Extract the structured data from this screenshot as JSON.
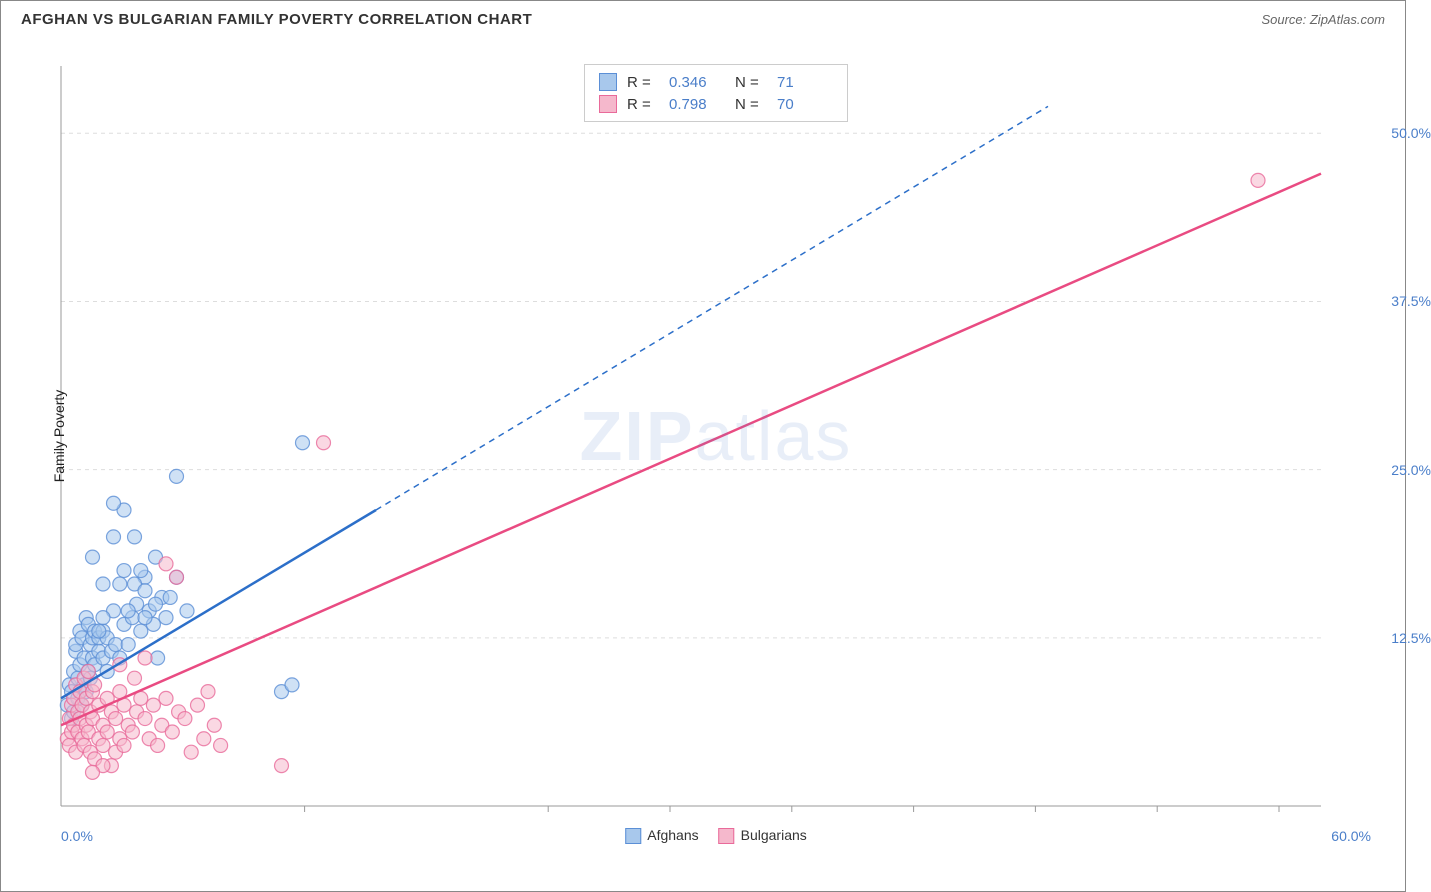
{
  "title": "AFGHAN VS BULGARIAN FAMILY POVERTY CORRELATION CHART",
  "source": "Source: ZipAtlas.com",
  "ylabel": "Family Poverty",
  "watermark_a": "ZIP",
  "watermark_b": "atlas",
  "chart": {
    "type": "scatter",
    "xlim": [
      0.0,
      60.0
    ],
    "ylim": [
      0.0,
      55.0
    ],
    "x_ticks": [
      0.0,
      60.0
    ],
    "x_tick_labels": [
      "0.0%",
      "60.0%"
    ],
    "x_minor_ticks": [
      11.6,
      23.2,
      29.0,
      34.8,
      40.6,
      46.4,
      52.2,
      58.0
    ],
    "y_ticks": [
      12.5,
      25.0,
      37.5,
      50.0
    ],
    "y_tick_labels": [
      "12.5%",
      "25.0%",
      "37.5%",
      "50.0%"
    ],
    "grid_color": "#dddddd",
    "grid_dash": "4,4",
    "axis_color": "#999999",
    "background_color": "#ffffff",
    "marker_radius": 7,
    "marker_opacity": 0.55,
    "series": [
      {
        "name": "Afghans",
        "color_fill": "#a8c8ec",
        "color_stroke": "#5b8fd6",
        "R": "0.346",
        "N": "71",
        "trend": {
          "x1": 0.0,
          "y1": 8.0,
          "x2": 15.0,
          "y2": 22.0,
          "x2_ext": 47.0,
          "y2_ext": 52.0,
          "color": "#2c6fc9",
          "width": 2.5
        },
        "points": [
          [
            0.3,
            7.5
          ],
          [
            0.4,
            9.0
          ],
          [
            0.5,
            6.5
          ],
          [
            0.5,
            8.5
          ],
          [
            0.6,
            10.0
          ],
          [
            0.6,
            7.0
          ],
          [
            0.7,
            11.5
          ],
          [
            0.7,
            12.0
          ],
          [
            0.8,
            9.5
          ],
          [
            0.8,
            8.0
          ],
          [
            0.9,
            13.0
          ],
          [
            0.9,
            10.5
          ],
          [
            1.0,
            7.5
          ],
          [
            1.0,
            12.5
          ],
          [
            1.1,
            11.0
          ],
          [
            1.1,
            9.0
          ],
          [
            1.2,
            14.0
          ],
          [
            1.2,
            8.5
          ],
          [
            1.3,
            10.0
          ],
          [
            1.3,
            13.5
          ],
          [
            1.4,
            12.0
          ],
          [
            1.4,
            9.5
          ],
          [
            1.5,
            11.0
          ],
          [
            1.5,
            12.5
          ],
          [
            1.6,
            10.5
          ],
          [
            1.6,
            13.0
          ],
          [
            1.8,
            11.5
          ],
          [
            1.8,
            12.5
          ],
          [
            2.0,
            13.0
          ],
          [
            2.0,
            11.0
          ],
          [
            2.2,
            10.0
          ],
          [
            2.2,
            12.5
          ],
          [
            2.4,
            11.5
          ],
          [
            2.5,
            14.5
          ],
          [
            2.6,
            12.0
          ],
          [
            2.8,
            11.0
          ],
          [
            3.0,
            13.5
          ],
          [
            3.0,
            17.5
          ],
          [
            3.2,
            12.0
          ],
          [
            3.4,
            14.0
          ],
          [
            3.6,
            15.0
          ],
          [
            3.8,
            13.0
          ],
          [
            4.0,
            17.0
          ],
          [
            4.2,
            14.5
          ],
          [
            4.4,
            13.5
          ],
          [
            4.6,
            11.0
          ],
          [
            4.8,
            15.5
          ],
          [
            5.0,
            14.0
          ],
          [
            5.5,
            17.0
          ],
          [
            6.0,
            14.5
          ],
          [
            3.5,
            16.5
          ],
          [
            2.5,
            20.0
          ],
          [
            3.5,
            20.0
          ],
          [
            4.5,
            18.5
          ],
          [
            2.0,
            16.5
          ],
          [
            1.5,
            18.5
          ],
          [
            2.8,
            16.5
          ],
          [
            3.2,
            14.5
          ],
          [
            4.0,
            16.0
          ],
          [
            5.2,
            15.5
          ],
          [
            4.0,
            14.0
          ],
          [
            3.0,
            22.0
          ],
          [
            5.5,
            24.5
          ],
          [
            2.5,
            22.5
          ],
          [
            3.8,
            17.5
          ],
          [
            10.5,
            8.5
          ],
          [
            11.5,
            27.0
          ],
          [
            11.0,
            9.0
          ],
          [
            4.5,
            15.0
          ],
          [
            2.0,
            14.0
          ],
          [
            1.8,
            13.0
          ]
        ]
      },
      {
        "name": "Bulgarians",
        "color_fill": "#f5b8cc",
        "color_stroke": "#e96a9a",
        "R": "0.798",
        "N": "70",
        "trend": {
          "x1": 0.0,
          "y1": 6.0,
          "x2": 60.0,
          "y2": 47.0,
          "color": "#e94b82",
          "width": 2.5
        },
        "points": [
          [
            0.3,
            5.0
          ],
          [
            0.4,
            6.5
          ],
          [
            0.4,
            4.5
          ],
          [
            0.5,
            7.5
          ],
          [
            0.5,
            5.5
          ],
          [
            0.6,
            8.0
          ],
          [
            0.6,
            6.0
          ],
          [
            0.7,
            4.0
          ],
          [
            0.7,
            9.0
          ],
          [
            0.8,
            7.0
          ],
          [
            0.8,
            5.5
          ],
          [
            0.9,
            6.5
          ],
          [
            0.9,
            8.5
          ],
          [
            1.0,
            5.0
          ],
          [
            1.0,
            7.5
          ],
          [
            1.1,
            4.5
          ],
          [
            1.1,
            9.5
          ],
          [
            1.2,
            6.0
          ],
          [
            1.2,
            8.0
          ],
          [
            1.3,
            5.5
          ],
          [
            1.3,
            10.0
          ],
          [
            1.4,
            7.0
          ],
          [
            1.4,
            4.0
          ],
          [
            1.5,
            8.5
          ],
          [
            1.5,
            6.5
          ],
          [
            1.6,
            3.5
          ],
          [
            1.6,
            9.0
          ],
          [
            1.8,
            5.0
          ],
          [
            1.8,
            7.5
          ],
          [
            2.0,
            6.0
          ],
          [
            2.0,
            4.5
          ],
          [
            2.2,
            8.0
          ],
          [
            2.2,
            5.5
          ],
          [
            2.4,
            7.0
          ],
          [
            2.4,
            3.0
          ],
          [
            2.6,
            6.5
          ],
          [
            2.6,
            4.0
          ],
          [
            2.8,
            8.5
          ],
          [
            2.8,
            5.0
          ],
          [
            3.0,
            7.5
          ],
          [
            3.0,
            4.5
          ],
          [
            3.2,
            6.0
          ],
          [
            3.4,
            5.5
          ],
          [
            3.6,
            7.0
          ],
          [
            3.8,
            8.0
          ],
          [
            4.0,
            6.5
          ],
          [
            4.2,
            5.0
          ],
          [
            4.4,
            7.5
          ],
          [
            4.6,
            4.5
          ],
          [
            4.8,
            6.0
          ],
          [
            5.0,
            8.0
          ],
          [
            5.3,
            5.5
          ],
          [
            5.6,
            7.0
          ],
          [
            5.9,
            6.5
          ],
          [
            6.2,
            4.0
          ],
          [
            6.5,
            7.5
          ],
          [
            6.8,
            5.0
          ],
          [
            7.0,
            8.5
          ],
          [
            7.3,
            6.0
          ],
          [
            7.6,
            4.5
          ],
          [
            3.5,
            9.5
          ],
          [
            2.8,
            10.5
          ],
          [
            4.0,
            11.0
          ],
          [
            5.0,
            18.0
          ],
          [
            5.5,
            17.0
          ],
          [
            12.5,
            27.0
          ],
          [
            10.5,
            3.0
          ],
          [
            2.0,
            3.0
          ],
          [
            1.5,
            2.5
          ],
          [
            57.0,
            46.5
          ]
        ]
      }
    ]
  },
  "bottom_legend": [
    {
      "label": "Afghans",
      "fill": "#a8c8ec",
      "stroke": "#5b8fd6"
    },
    {
      "label": "Bulgarians",
      "fill": "#f5b8cc",
      "stroke": "#e96a9a"
    }
  ],
  "stats_box": {
    "rows": [
      {
        "fill": "#a8c8ec",
        "stroke": "#5b8fd6",
        "r_label": "R =",
        "r_val": "0.346",
        "n_label": "N =",
        "n_val": "71",
        "val_color": "#4a7ec9"
      },
      {
        "fill": "#f5b8cc",
        "stroke": "#e96a9a",
        "r_label": "R =",
        "r_val": "0.798",
        "n_label": "N =",
        "n_val": "70",
        "val_color": "#4a7ec9"
      }
    ]
  }
}
